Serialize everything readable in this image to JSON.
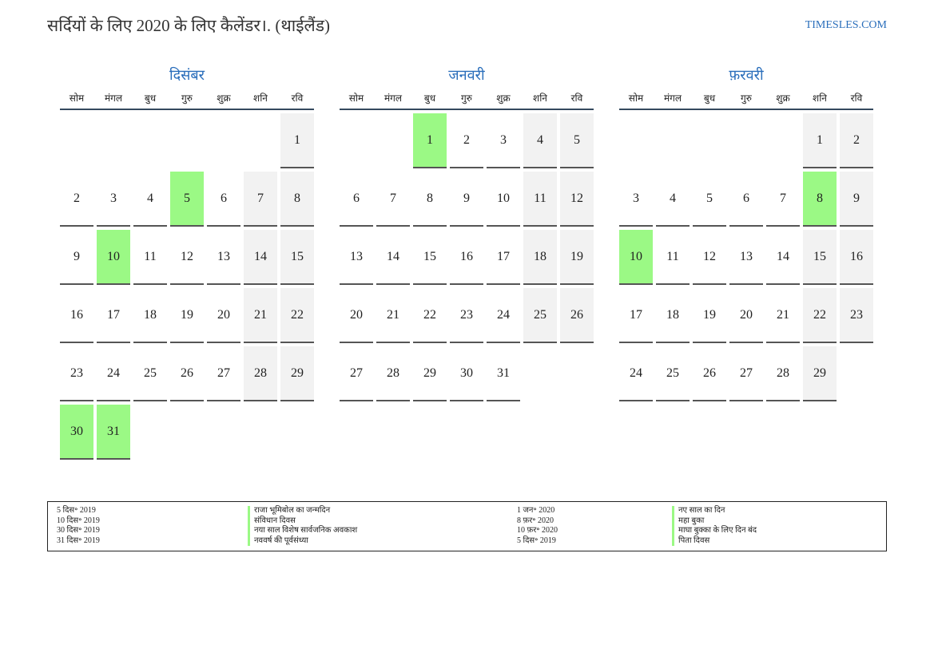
{
  "header": {
    "title": "सर्दियों के लिए 2020 के लिए कैलेंडर।. (थाईलैंड)",
    "site": "TIMESLES.COM"
  },
  "weekdays": [
    "सोम",
    "मंगल",
    "बुध",
    "गुरु",
    "शुक्र",
    "शनि",
    "रवि"
  ],
  "months": [
    {
      "name": "दिसंबर",
      "start_offset": 6,
      "days": 31,
      "holidays": [
        5,
        10,
        30,
        31
      ]
    },
    {
      "name": "जनवरी",
      "start_offset": 2,
      "days": 31,
      "holidays": [
        1
      ]
    },
    {
      "name": "फ़रवरी",
      "start_offset": 5,
      "days": 29,
      "holidays": [
        8,
        10
      ]
    }
  ],
  "legend": {
    "left": [
      {
        "date": "5 दिस॰ 2019",
        "name": "राजा भूमिबोल का जन्मदिन"
      },
      {
        "date": "10 दिस॰ 2019",
        "name": "संविधान दिवस"
      },
      {
        "date": "30 दिस॰ 2019",
        "name": "नया साल विशेष सार्वजनिक अवकाश"
      },
      {
        "date": "31 दिस॰ 2019",
        "name": "नववर्ष की पूर्वसंध्या"
      }
    ],
    "right": [
      {
        "date": "1 जन॰ 2020",
        "name": "नए साल का दिन"
      },
      {
        "date": "8 फ़र॰ 2020",
        "name": "महा बुका"
      },
      {
        "date": "10 फ़र॰ 2020",
        "name": "माघा बुक्का के लिए दिन बंद"
      },
      {
        "date": "5 दिस॰ 2019",
        "name": "पिता दिवस"
      }
    ]
  },
  "colors": {
    "accent": "#2a6ebb",
    "holiday": "#9bf985",
    "weekend": "#f2f2f2"
  }
}
